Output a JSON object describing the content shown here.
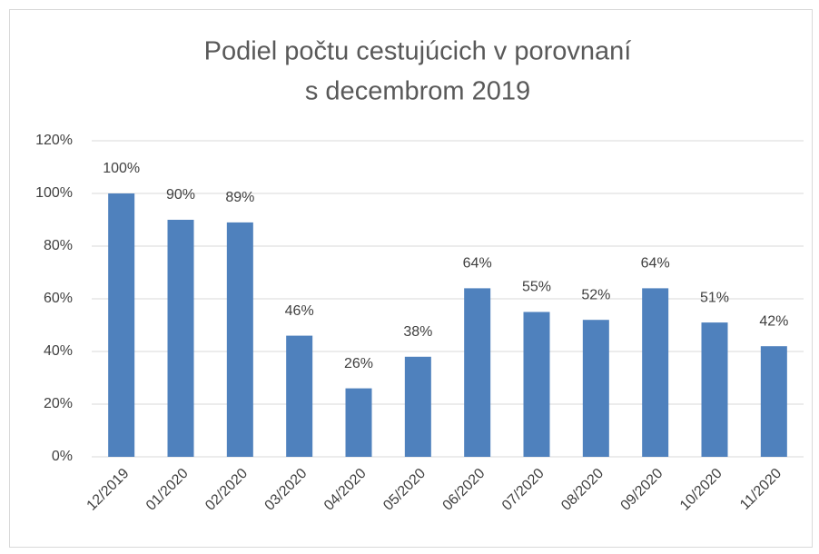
{
  "chart_data": {
    "type": "bar",
    "title": [
      "Podiel počtu cestujúcich v porovnaní",
      "s decembrom 2019"
    ],
    "categories": [
      "12/2019",
      "01/2020",
      "02/2020",
      "03/2020",
      "04/2020",
      "05/2020",
      "06/2020",
      "07/2020",
      "08/2020",
      "09/2020",
      "10/2020",
      "11/2020"
    ],
    "values": [
      100,
      90,
      89,
      46,
      26,
      38,
      64,
      55,
      52,
      64,
      51,
      42
    ],
    "value_labels": [
      "100%",
      "90%",
      "89%",
      "46%",
      "26%",
      "38%",
      "64%",
      "55%",
      "52%",
      "64%",
      "51%",
      "42%"
    ],
    "color": "#4f81bd",
    "ylim": [
      0,
      120
    ],
    "yticks": [
      {
        "value": 0,
        "label": "0%"
      },
      {
        "value": 20,
        "label": "20%"
      },
      {
        "value": 40,
        "label": "40%"
      },
      {
        "value": 60,
        "label": "60%"
      },
      {
        "value": 80,
        "label": "80%"
      },
      {
        "value": 100,
        "label": "100%"
      },
      {
        "value": 120,
        "label": "120%"
      }
    ],
    "grid": true
  }
}
